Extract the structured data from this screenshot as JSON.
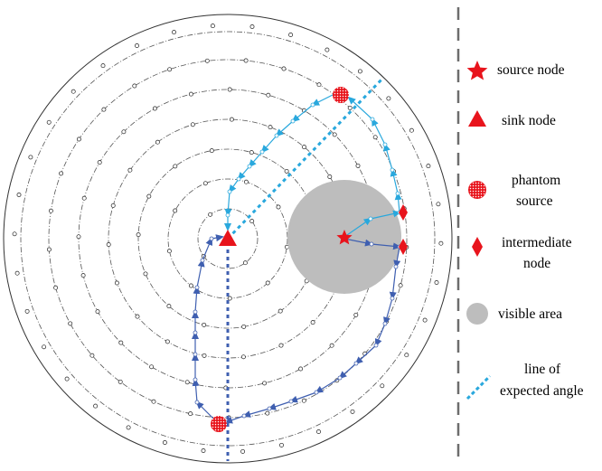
{
  "colors": {
    "node_red": "#e8141c",
    "arrow_dark_blue": "#3f5fb0",
    "arrow_light_blue": "#29a8dd",
    "visible_area_gray": "#bdbdbd",
    "divider_gray": "#6d6d6d"
  },
  "icons": {
    "source": "red-star-icon",
    "sink": "red-triangle-icon",
    "phantom": "red-dotted-circle-icon",
    "intermediate": "red-diamond-icon",
    "visible": "gray-disc-icon",
    "line": "blue-dotted-line-icon"
  },
  "legend": {
    "source_node": "source node",
    "sink_node": "sink node",
    "phantom_source_1": "phantom",
    "phantom_source_2": "source",
    "intermediate_node_1": "intermediate",
    "intermediate_node_2": "node",
    "visible_area": "visible area",
    "line_expected_angle_1": "line of",
    "line_expected_angle_2": "expected angle"
  }
}
